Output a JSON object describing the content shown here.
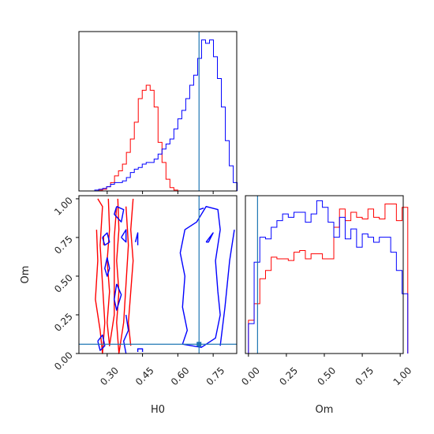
{
  "colors": {
    "series_a": "#ff0000",
    "series_b": "#0000ff",
    "truth": "#1f77b4",
    "axis": "#000000"
  },
  "chart_data": {
    "type": "corner",
    "parameters": [
      "H0",
      "Om"
    ],
    "truths": {
      "H0": 0.69,
      "Om": 0.06
    },
    "series_colors": [
      "red",
      "blue"
    ],
    "grid": false,
    "legend": "none",
    "panels": [
      {
        "id": "hist_H0",
        "type": "histogram",
        "xlim": [
          0.18,
          0.85
        ],
        "bin_width": 0.0168,
        "bin_start": 0.18,
        "series": [
          {
            "color": "red",
            "values": [
              0,
              0,
              0,
              0,
              0,
              0.005,
              0.01,
              0.025,
              0.05,
              0.09,
              0.12,
              0.16,
              0.23,
              0.31,
              0.41,
              0.55,
              0.6,
              0.63,
              0.6,
              0.5,
              0.29,
              0.17,
              0.07,
              0.02,
              0.005,
              0,
              0,
              0,
              0,
              0,
              0,
              0,
              0,
              0,
              0,
              0,
              0,
              0,
              0,
              0
            ]
          },
          {
            "color": "blue",
            "values": [
              0,
              0,
              0,
              0,
              0.005,
              0.01,
              0.015,
              0.025,
              0.04,
              0.05,
              0.05,
              0.06,
              0.08,
              0.11,
              0.13,
              0.14,
              0.16,
              0.17,
              0.17,
              0.19,
              0.22,
              0.25,
              0.28,
              0.31,
              0.37,
              0.43,
              0.48,
              0.55,
              0.63,
              0.69,
              0.79,
              0.9,
              0.88,
              0.9,
              0.8,
              0.67,
              0.5,
              0.3,
              0.15,
              0.05
            ]
          }
        ],
        "ylim": [
          0,
          0.95
        ],
        "show_xtick_labels": false
      },
      {
        "id": "contour_H0_Om",
        "type": "contour",
        "xlabel": "H0",
        "ylabel": "Om",
        "xlim": [
          0.18,
          0.85
        ],
        "ylim": [
          0.0,
          1.02
        ],
        "xticks": [
          0.3,
          0.45,
          0.6,
          0.75
        ],
        "xtick_labels": [
          "0.30",
          "0.45",
          "0.60",
          "0.75"
        ],
        "yticks": [
          0.0,
          0.25,
          0.5,
          0.75,
          1.0
        ],
        "ytick_labels": [
          "0.00",
          "0.25",
          "0.50",
          "0.75",
          "1.00"
        ],
        "truth_point": {
          "x": 0.69,
          "y": 0.06
        },
        "contours": [
          {
            "color": "red",
            "points": [
              [
                0.255,
                0.8
              ],
              [
                0.26,
                0.6
              ],
              [
                0.25,
                0.35
              ],
              [
                0.27,
                0.15
              ],
              [
                0.28,
                0.0
              ],
              [
                0.29,
                0.2
              ],
              [
                0.28,
                0.45
              ],
              [
                0.27,
                0.7
              ],
              [
                0.28,
                0.95
              ],
              [
                0.26,
                1.0
              ]
            ]
          },
          {
            "color": "red",
            "points": [
              [
                0.305,
                1.0
              ],
              [
                0.31,
                0.8
              ],
              [
                0.3,
                0.6
              ],
              [
                0.31,
                0.4
              ],
              [
                0.3,
                0.2
              ],
              [
                0.31,
                0.05
              ],
              [
                0.33,
                0.25
              ],
              [
                0.33,
                0.5
              ],
              [
                0.33,
                0.75
              ],
              [
                0.34,
                0.95
              ]
            ]
          },
          {
            "color": "red",
            "points": [
              [
                0.345,
                1.0
              ],
              [
                0.35,
                0.8
              ],
              [
                0.34,
                0.6
              ],
              [
                0.35,
                0.4
              ],
              [
                0.34,
                0.2
              ],
              [
                0.35,
                0.0
              ],
              [
                0.37,
                0.2
              ],
              [
                0.38,
                0.45
              ],
              [
                0.39,
                0.7
              ],
              [
                0.38,
                0.95
              ]
            ]
          },
          {
            "color": "red",
            "points": [
              [
                0.41,
                1.0
              ],
              [
                0.4,
                0.8
              ],
              [
                0.41,
                0.6
              ],
              [
                0.4,
                0.4
              ],
              [
                0.39,
                0.2
              ],
              [
                0.4,
                0.05
              ]
            ]
          },
          {
            "color": "red",
            "points": [
              [
                0.285,
                0.76
              ],
              [
                0.285,
                0.7
              ]
            ]
          },
          {
            "color": "blue",
            "points": [
              [
                0.62,
                0.06
              ],
              [
                0.64,
                0.15
              ],
              [
                0.62,
                0.3
              ],
              [
                0.63,
                0.5
              ],
              [
                0.61,
                0.65
              ],
              [
                0.63,
                0.8
              ],
              [
                0.68,
                0.85
              ],
              [
                0.72,
                0.95
              ],
              [
                0.77,
                0.93
              ],
              [
                0.78,
                0.8
              ],
              [
                0.76,
                0.6
              ],
              [
                0.77,
                0.4
              ],
              [
                0.78,
                0.25
              ],
              [
                0.76,
                0.1
              ],
              [
                0.7,
                0.04
              ],
              [
                0.62,
                0.06
              ]
            ]
          },
          {
            "color": "blue",
            "points": [
              [
                0.78,
                0.05
              ],
              [
                0.8,
                0.3
              ],
              [
                0.82,
                0.6
              ],
              [
                0.84,
                0.8
              ]
            ]
          },
          {
            "color": "blue",
            "points": [
              [
                0.72,
                0.72
              ],
              [
                0.75,
                0.78
              ],
              [
                0.73,
                0.72
              ],
              [
                0.72,
                0.72
              ]
            ]
          },
          {
            "color": "blue",
            "points": [
              [
                0.34,
                0.95
              ],
              [
                0.37,
                0.93
              ],
              [
                0.36,
                0.85
              ],
              [
                0.33,
                0.9
              ],
              [
                0.34,
                0.95
              ]
            ]
          },
          {
            "color": "blue",
            "points": [
              [
                0.3,
                0.62
              ],
              [
                0.31,
                0.55
              ],
              [
                0.3,
                0.5
              ],
              [
                0.29,
                0.55
              ],
              [
                0.3,
                0.62
              ]
            ]
          },
          {
            "color": "blue",
            "points": [
              [
                0.28,
                0.75
              ],
              [
                0.3,
                0.78
              ],
              [
                0.31,
                0.72
              ],
              [
                0.29,
                0.7
              ],
              [
                0.28,
                0.75
              ]
            ]
          },
          {
            "color": "blue",
            "points": [
              [
                0.36,
                0.75
              ],
              [
                0.38,
                0.8
              ],
              [
                0.38,
                0.72
              ],
              [
                0.36,
                0.75
              ]
            ]
          },
          {
            "color": "blue",
            "points": [
              [
                0.34,
                0.45
              ],
              [
                0.36,
                0.38
              ],
              [
                0.34,
                0.28
              ],
              [
                0.33,
                0.35
              ],
              [
                0.34,
                0.45
              ]
            ]
          },
          {
            "color": "blue",
            "points": [
              [
                0.26,
                0.08
              ],
              [
                0.28,
                0.12
              ],
              [
                0.29,
                0.05
              ],
              [
                0.27,
                0.02
              ],
              [
                0.26,
                0.08
              ]
            ]
          },
          {
            "color": "blue",
            "points": [
              [
                0.42,
                0.72
              ],
              [
                0.43,
                0.78
              ],
              [
                0.43,
                0.7
              ]
            ]
          },
          {
            "color": "blue",
            "points": [
              [
                0.38,
                0.0
              ],
              [
                0.37,
                0.08
              ],
              [
                0.39,
                0.15
              ],
              [
                0.38,
                0.25
              ]
            ]
          },
          {
            "color": "blue",
            "points": [
              [
                0.43,
                0.01
              ],
              [
                0.43,
                0.03
              ],
              [
                0.45,
                0.03
              ],
              [
                0.45,
                0.01
              ]
            ]
          },
          {
            "color": "blue",
            "points": [
              [
                0.69,
                0.93
              ],
              [
                0.71,
                0.94
              ]
            ]
          }
        ]
      },
      {
        "id": "hist_Om",
        "type": "histogram",
        "xlabel": "Om",
        "xlim": [
          -0.02,
          1.02
        ],
        "xticks": [
          0.0,
          0.25,
          0.5,
          0.75,
          1.0
        ],
        "xtick_labels": [
          "0.00",
          "0.25",
          "0.50",
          "0.75",
          "1.00"
        ],
        "bin_width": 0.0375,
        "bin_start": 0.0,
        "series": [
          {
            "color": "red",
            "values": [
              0.2,
              0.3,
              0.45,
              0.5,
              0.58,
              0.57,
              0.57,
              0.56,
              0.61,
              0.62,
              0.57,
              0.6,
              0.6,
              0.57,
              0.57,
              0.76,
              0.87,
              0.8,
              0.85,
              0.82,
              0.81,
              0.87,
              0.82,
              0.81,
              0.9,
              0.9,
              0.8,
              0.88
            ]
          },
          {
            "color": "blue",
            "values": [
              0.18,
              0.55,
              0.7,
              0.69,
              0.76,
              0.8,
              0.84,
              0.82,
              0.85,
              0.85,
              0.79,
              0.84,
              0.92,
              0.88,
              0.79,
              0.7,
              0.82,
              0.69,
              0.75,
              0.64,
              0.72,
              0.7,
              0.67,
              0.7,
              0.7,
              0.61,
              0.5,
              0.36
            ]
          }
        ],
        "ylim": [
          0,
          0.95
        ]
      }
    ]
  }
}
